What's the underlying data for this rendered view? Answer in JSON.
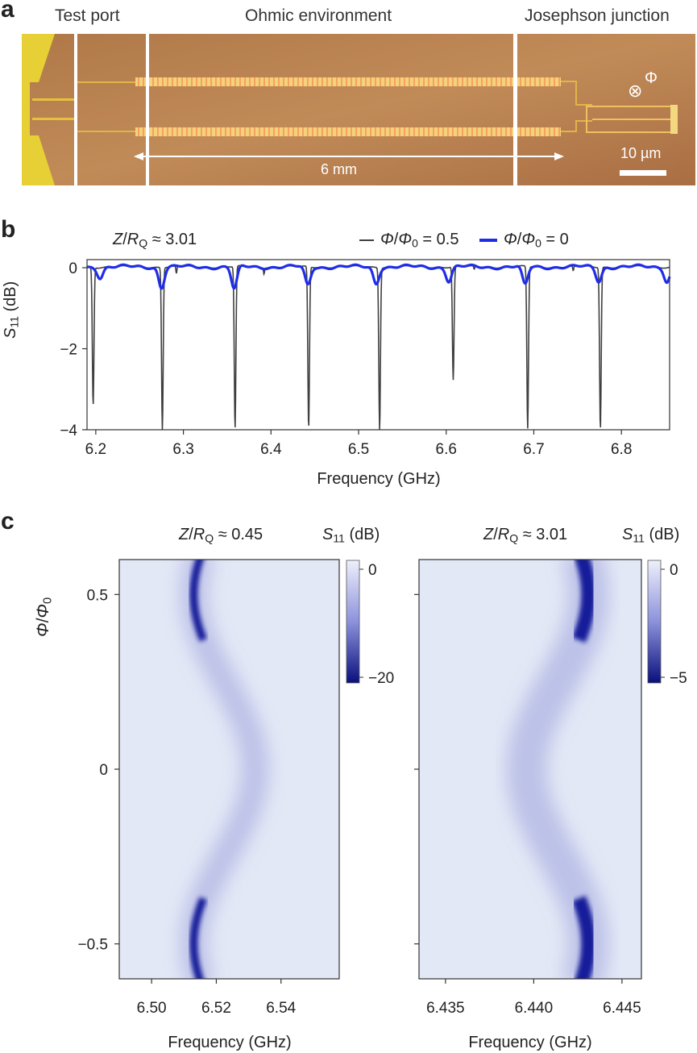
{
  "panel_a": {
    "label": "a",
    "headers": [
      "Test port",
      "Ohmic environment",
      "Josephson junction"
    ],
    "length_label": "6 mm",
    "scale_bar_label": "10 µm",
    "flux_symbol": "⊗",
    "flux_label": "Φ"
  },
  "panel_b": {
    "label": "b",
    "z_ratio": "≈ 3.01",
    "legend": [
      {
        "name": "Φ/Φ0 = 0.5",
        "value": "= 0.5",
        "color": "#404040"
      },
      {
        "name": "Φ/Φ0 = 0",
        "value": "= 0",
        "color": "#1f2ee6"
      }
    ],
    "xlabel": "Frequency (GHz)",
    "ylabel": "S11 (dB)",
    "xticks": [
      "6.2",
      "6.3",
      "6.4",
      "6.5",
      "6.6",
      "6.7",
      "6.8"
    ],
    "yticks": [
      "0",
      "−2",
      "−4"
    ]
  },
  "panel_c": {
    "label": "c",
    "ylabel": "Φ/Φ0",
    "yticks": [
      "0.5",
      "0",
      "−0.5"
    ],
    "left": {
      "z_ratio": "≈ 0.45",
      "cb_title": "S11 (dB)",
      "cb_ticks": [
        "0",
        "−20"
      ],
      "xticks": [
        "6.50",
        "6.52",
        "6.54"
      ],
      "xlabel": "Frequency (GHz)"
    },
    "right": {
      "z_ratio": "≈ 3.01",
      "cb_title": "S11 (dB)",
      "cb_ticks": [
        "0",
        "−5"
      ],
      "xticks": [
        "6.435",
        "6.440",
        "6.445"
      ],
      "xlabel": "Frequency (GHz)"
    }
  },
  "chart_data": [
    {
      "type": "line",
      "title": "Z/RQ ≈ 3.01",
      "xlabel": "Frequency (GHz)",
      "ylabel": "S11 (dB)",
      "xlim": [
        6.19,
        6.855
      ],
      "ylim": [
        -4,
        0.2
      ],
      "xticks": [
        6.2,
        6.3,
        6.4,
        6.5,
        6.6,
        6.7,
        6.8
      ],
      "yticks": [
        0,
        -2,
        -4
      ],
      "series": [
        {
          "name": "Φ/Φ0 = 0.5",
          "color": "#404040",
          "dips": [
            {
              "f": 6.197,
              "depth": -3.4
            },
            {
              "f": 6.276,
              "depth": -4.0
            },
            {
              "f": 6.359,
              "depth": -4.0
            },
            {
              "f": 6.443,
              "depth": -4.0
            },
            {
              "f": 6.524,
              "depth": -4.0
            },
            {
              "f": 6.608,
              "depth": -2.8
            },
            {
              "f": 6.693,
              "depth": -4.0
            },
            {
              "f": 6.776,
              "depth": -4.0
            }
          ]
        },
        {
          "name": "Φ/Φ0 = 0",
          "color": "#1f2ee6",
          "dips": [
            {
              "f": 6.205,
              "depth": -0.25
            },
            {
              "f": 6.275,
              "depth": -0.5
            },
            {
              "f": 6.358,
              "depth": -0.55
            },
            {
              "f": 6.442,
              "depth": -0.45
            },
            {
              "f": 6.52,
              "depth": -0.4
            },
            {
              "f": 6.603,
              "depth": -0.35
            },
            {
              "f": 6.69,
              "depth": -0.45
            },
            {
              "f": 6.774,
              "depth": -0.35
            },
            {
              "f": 6.852,
              "depth": -0.35
            }
          ]
        }
      ]
    },
    {
      "type": "heatmap",
      "title": "Z/RQ ≈ 0.45",
      "xlabel": "Frequency (GHz)",
      "ylabel": "Φ/Φ0",
      "xlim": [
        6.49,
        6.558
      ],
      "ylim": [
        -0.6,
        0.6
      ],
      "colorbar_label": "S11 (dB)",
      "colorbar_range": [
        -20,
        0
      ],
      "resonance": {
        "f_at_half_flux": 6.513,
        "f_at_zero_flux": 6.532
      }
    },
    {
      "type": "heatmap",
      "title": "Z/RQ ≈ 3.01",
      "xlabel": "Frequency (GHz)",
      "ylabel": "Φ/Φ0",
      "xlim": [
        6.4335,
        6.4461
      ],
      "ylim": [
        -0.6,
        0.6
      ],
      "colorbar_label": "S11 (dB)",
      "colorbar_range": [
        -5,
        0
      ],
      "resonance": {
        "f_at_half_flux": 6.4431,
        "f_at_zero_flux": 6.4396
      }
    }
  ]
}
